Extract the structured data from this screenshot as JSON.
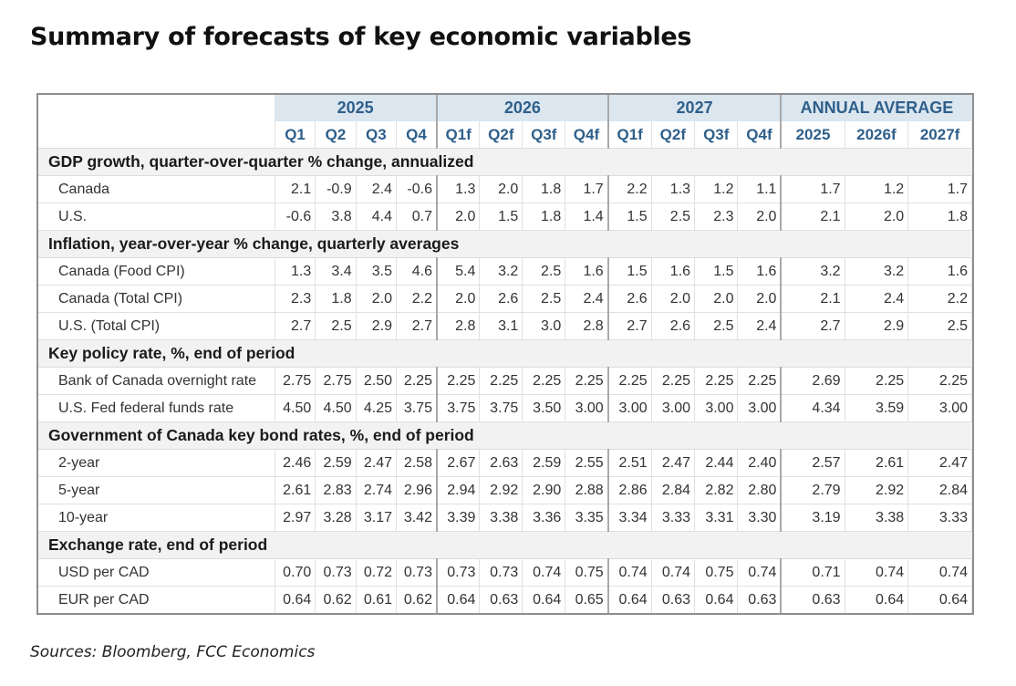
{
  "title": "Summary of forecasts of key economic variables",
  "source": "Sources: Bloomberg, FCC Economics",
  "header": {
    "year_groups": [
      {
        "label": "2025"
      },
      {
        "label": "2026"
      },
      {
        "label": "2027"
      },
      {
        "label": "ANNUAL AVERAGE"
      }
    ],
    "columns": [
      "Q1",
      "Q2",
      "Q3",
      "Q4",
      "Q1f",
      "Q2f",
      "Q3f",
      "Q4f",
      "Q1f",
      "Q2f",
      "Q3f",
      "Q4f",
      "2025",
      "2026f",
      "2027f"
    ]
  },
  "sections": [
    {
      "title": "GDP growth, quarter-over-quarter % change, annualized",
      "rows": [
        {
          "label": "Canada",
          "values": [
            "2.1",
            "-0.9",
            "2.4",
            "-0.6",
            "1.3",
            "2.0",
            "1.8",
            "1.7",
            "2.2",
            "1.3",
            "1.2",
            "1.1",
            "1.7",
            "1.2",
            "1.7"
          ]
        },
        {
          "label": "U.S.",
          "values": [
            "-0.6",
            "3.8",
            "4.4",
            "0.7",
            "2.0",
            "1.5",
            "1.8",
            "1.4",
            "1.5",
            "2.5",
            "2.3",
            "2.0",
            "2.1",
            "2.0",
            "1.8"
          ]
        }
      ]
    },
    {
      "title": "Inflation, year-over-year % change, quarterly averages",
      "rows": [
        {
          "label": "Canada (Food CPI)",
          "values": [
            "1.3",
            "3.4",
            "3.5",
            "4.6",
            "5.4",
            "3.2",
            "2.5",
            "1.6",
            "1.5",
            "1.6",
            "1.5",
            "1.6",
            "3.2",
            "3.2",
            "1.6"
          ]
        },
        {
          "label": "Canada (Total CPI)",
          "values": [
            "2.3",
            "1.8",
            "2.0",
            "2.2",
            "2.0",
            "2.6",
            "2.5",
            "2.4",
            "2.6",
            "2.0",
            "2.0",
            "2.0",
            "2.1",
            "2.4",
            "2.2"
          ]
        },
        {
          "label": "U.S. (Total CPI)",
          "values": [
            "2.7",
            "2.5",
            "2.9",
            "2.7",
            "2.8",
            "3.1",
            "3.0",
            "2.8",
            "2.7",
            "2.6",
            "2.5",
            "2.4",
            "2.7",
            "2.9",
            "2.5"
          ]
        }
      ]
    },
    {
      "title": "Key policy rate, %, end of period",
      "rows": [
        {
          "label": "Bank of Canada overnight rate",
          "values": [
            "2.75",
            "2.75",
            "2.50",
            "2.25",
            "2.25",
            "2.25",
            "2.25",
            "2.25",
            "2.25",
            "2.25",
            "2.25",
            "2.25",
            "2.69",
            "2.25",
            "2.25"
          ]
        },
        {
          "label": "U.S. Fed federal funds rate",
          "values": [
            "4.50",
            "4.50",
            "4.25",
            "3.75",
            "3.75",
            "3.75",
            "3.50",
            "3.00",
            "3.00",
            "3.00",
            "3.00",
            "3.00",
            "4.34",
            "3.59",
            "3.00"
          ]
        }
      ]
    },
    {
      "title": "Government of Canada key bond rates, %, end of period",
      "rows": [
        {
          "label": "2-year",
          "values": [
            "2.46",
            "2.59",
            "2.47",
            "2.58",
            "2.67",
            "2.63",
            "2.59",
            "2.55",
            "2.51",
            "2.47",
            "2.44",
            "2.40",
            "2.57",
            "2.61",
            "2.47"
          ]
        },
        {
          "label": "5-year",
          "values": [
            "2.61",
            "2.83",
            "2.74",
            "2.96",
            "2.94",
            "2.92",
            "2.90",
            "2.88",
            "2.86",
            "2.84",
            "2.82",
            "2.80",
            "2.79",
            "2.92",
            "2.84"
          ]
        },
        {
          "label": "10-year",
          "values": [
            "2.97",
            "3.28",
            "3.17",
            "3.42",
            "3.39",
            "3.38",
            "3.36",
            "3.35",
            "3.34",
            "3.33",
            "3.31",
            "3.30",
            "3.19",
            "3.38",
            "3.33"
          ]
        }
      ]
    },
    {
      "title": "Exchange rate, end of period",
      "rows": [
        {
          "label": "USD per CAD",
          "values": [
            "0.70",
            "0.73",
            "0.72",
            "0.73",
            "0.73",
            "0.73",
            "0.74",
            "0.75",
            "0.74",
            "0.74",
            "0.75",
            "0.74",
            "0.71",
            "0.74",
            "0.74"
          ]
        },
        {
          "label": "EUR per CAD",
          "values": [
            "0.64",
            "0.62",
            "0.61",
            "0.62",
            "0.64",
            "0.63",
            "0.64",
            "0.65",
            "0.64",
            "0.63",
            "0.64",
            "0.63",
            "0.63",
            "0.64",
            "0.64"
          ]
        }
      ]
    }
  ]
}
